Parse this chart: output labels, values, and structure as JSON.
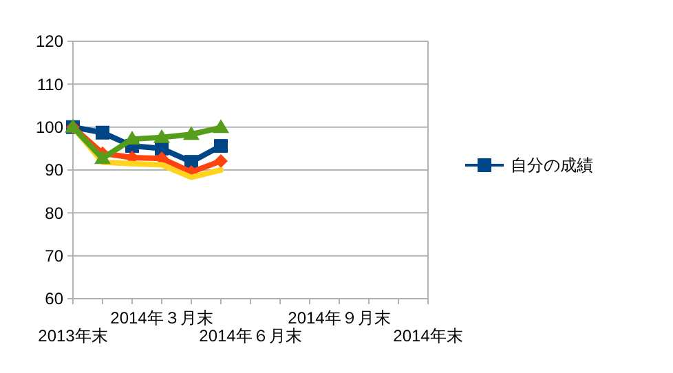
{
  "chart_data": {
    "type": "line",
    "categories": [
      "2013年末",
      null,
      null,
      "2014年３月末",
      null,
      null,
      "2014年６月末",
      null,
      null,
      "2014年９月末",
      null,
      null,
      "2014年末"
    ],
    "ylim": [
      60,
      120
    ],
    "yticks": [
      60,
      70,
      80,
      90,
      100,
      110,
      120
    ],
    "grid": "y",
    "legend": "right",
    "series": [
      {
        "name": "自分の成績",
        "color": "#004586",
        "marker": "square",
        "values": [
          100,
          98.7,
          95.6,
          95.0,
          91.9,
          95.6,
          null,
          null,
          null,
          null,
          null,
          null,
          null
        ]
      },
      {
        "color": "#ff420e",
        "marker": "diamond",
        "values": [
          100,
          93.9,
          92.9,
          92.7,
          89.5,
          92.1,
          null,
          null,
          null,
          null,
          null,
          null,
          null
        ]
      },
      {
        "color": "#ffd320",
        "marker": "none",
        "values": [
          100,
          91.8,
          91.5,
          91.2,
          88.3,
          90.0,
          null,
          null,
          null,
          null,
          null,
          null,
          null
        ]
      },
      {
        "color": "#579d1c",
        "marker": "triangle",
        "values": [
          100,
          92.7,
          97.2,
          97.6,
          98.3,
          99.9,
          null,
          null,
          null,
          null,
          null,
          null,
          null
        ]
      }
    ]
  }
}
